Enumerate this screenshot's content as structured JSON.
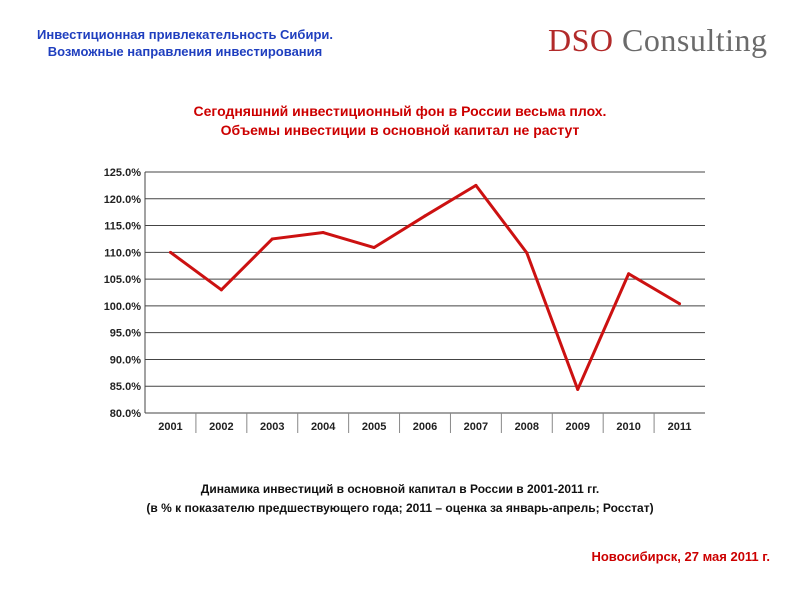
{
  "header": {
    "line1": "Инвестиционная привлекательность Сибири.",
    "line2": "Возможные направления инвестирования"
  },
  "logo": {
    "part1": "DSO",
    "part2": "Consulting"
  },
  "chart_title": {
    "line1": "Сегодняшний инвестиционный фон в России весьма плох.",
    "line2": "Объемы инвестиции в основной капитал не растут"
  },
  "chart_data": {
    "type": "line",
    "categories": [
      "2001",
      "2002",
      "2003",
      "2004",
      "2005",
      "2006",
      "2007",
      "2008",
      "2009",
      "2010",
      "2011"
    ],
    "series": [
      {
        "values": [
          110.0,
          103.0,
          112.5,
          113.7,
          110.9,
          116.8,
          122.5,
          109.9,
          84.4,
          106.0,
          100.4
        ]
      }
    ],
    "y_ticks": [
      "80.0%",
      "85.0%",
      "90.0%",
      "95.0%",
      "100.0%",
      "105.0%",
      "110.0%",
      "115.0%",
      "120.0%",
      "125.0%"
    ],
    "ylim": [
      80,
      125
    ],
    "grid": true,
    "line_color": "#cc1111"
  },
  "caption": {
    "line1": "Динамика инвестиций в основной капитал в России в 2001-2011 гг.",
    "line2": "(в % к показателю предшествующего года; 2011 – оценка за январь-апрель; Росстат)"
  },
  "footer": "Новосибирск, 27 мая 2011 г."
}
